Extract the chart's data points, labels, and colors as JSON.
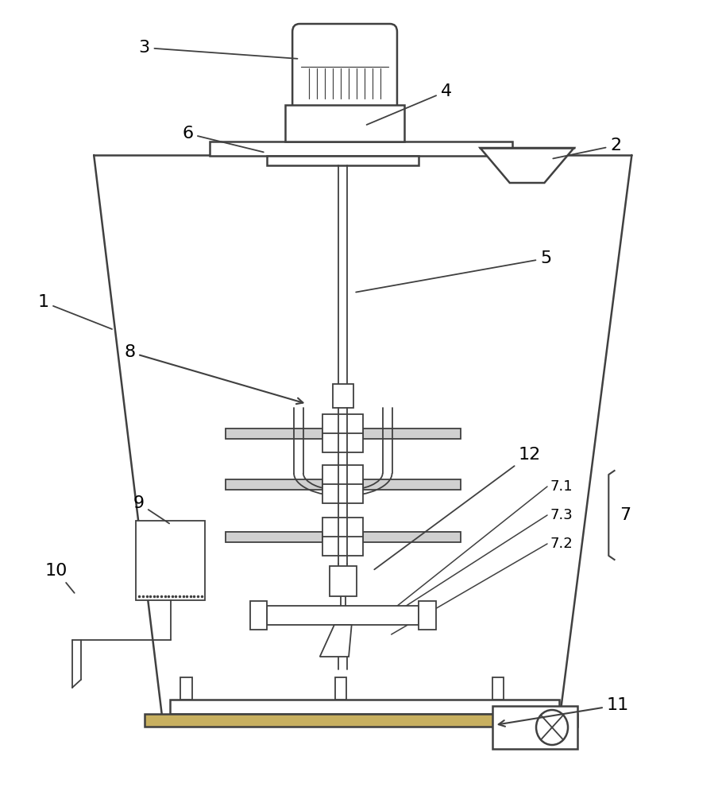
{
  "bg_color": "#ffffff",
  "line_color": "#404040",
  "label_color": "#000000",
  "lw": 1.8,
  "lwd": 1.3,
  "label_fontsize": 16
}
